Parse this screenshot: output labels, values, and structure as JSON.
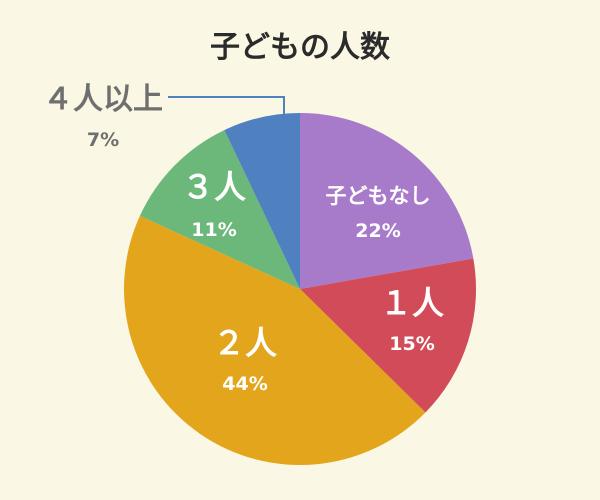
{
  "chart_data": {
    "type": "pie",
    "title": "子どもの人数",
    "categories": [
      "子どもなし",
      "１人",
      "２人",
      "３人",
      "４人以上"
    ],
    "values": [
      22,
      15,
      44,
      11,
      7
    ],
    "percent_labels": [
      "22%",
      "15%",
      "44%",
      "11%",
      "7%"
    ],
    "colors": [
      "#a77bc9",
      "#d14c58",
      "#e3a51b",
      "#6cb77a",
      "#4f80c0"
    ],
    "leader_color": "#4f80c0",
    "start_angle": "12 o'clock",
    "direction": "clockwise"
  }
}
